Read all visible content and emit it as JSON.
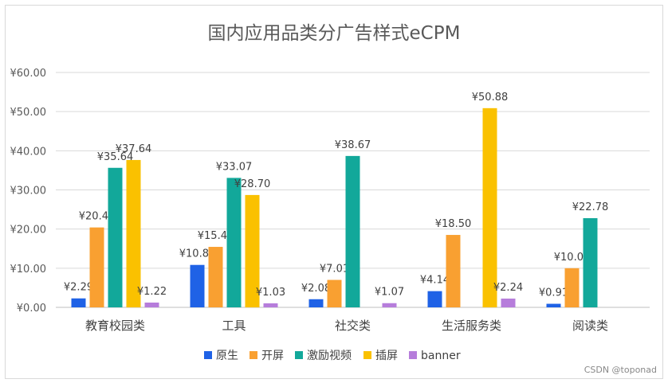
{
  "chart_data": {
    "type": "bar",
    "title": "国内应用品类分广告样式eCPM",
    "categories": [
      "教育校园类",
      "工具",
      "社交类",
      "生活服务类",
      "阅读类"
    ],
    "ylim": [
      0,
      60
    ],
    "yticks": [
      "¥0.00",
      "¥10.00",
      "¥20.00",
      "¥30.00",
      "¥40.00",
      "¥50.00",
      "¥60.00"
    ],
    "grid": true,
    "legend_position": "bottom",
    "series": [
      {
        "name": "原生",
        "color": "#1f62e6",
        "values": [
          2.29,
          10.84,
          2.08,
          4.14,
          0.91
        ],
        "labels": [
          "¥2.29",
          "¥10.84",
          "¥2.08",
          "¥4.14",
          "¥0.91"
        ]
      },
      {
        "name": "开屏",
        "color": "#f9a031",
        "values": [
          20.41,
          15.45,
          7.01,
          18.5,
          10.0
        ],
        "labels": [
          "¥20.41",
          "¥15.45",
          "¥7.01",
          "¥18.50",
          "¥10.00"
        ]
      },
      {
        "name": "激励视频",
        "color": "#12a89a",
        "values": [
          35.64,
          33.07,
          38.67,
          null,
          22.78
        ],
        "labels": [
          "¥35.64",
          "¥33.07",
          "¥38.67",
          "",
          "¥22.78"
        ]
      },
      {
        "name": "插屏",
        "color": "#fac100",
        "values": [
          37.64,
          28.7,
          null,
          50.88,
          null
        ],
        "labels": [
          "¥37.64",
          "¥28.70",
          "",
          "¥50.88",
          ""
        ]
      },
      {
        "name": "banner",
        "color": "#b67ddb",
        "values": [
          1.22,
          1.03,
          1.07,
          2.24,
          null
        ],
        "labels": [
          "¥1.22",
          "¥1.03",
          "¥1.07",
          "¥2.24",
          ""
        ]
      }
    ]
  },
  "watermark": "CSDN @toponad"
}
